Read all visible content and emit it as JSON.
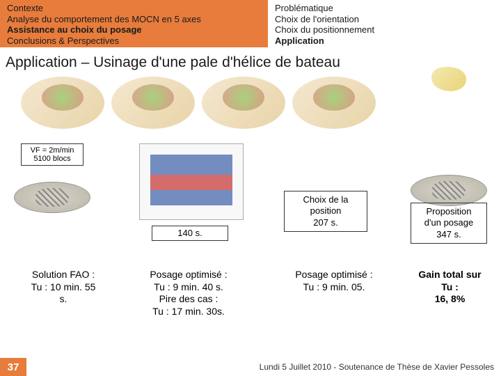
{
  "header": {
    "left": {
      "line1": "Contexte",
      "line2": "Analyse du comportement des MOCN en 5 axes",
      "line3": "Assistance au choix du posage",
      "line4": "Conclusions & Perspectives",
      "bg_color": "#e77c3c"
    },
    "right": {
      "line1": "Problématique",
      "line2": "Choix de l'orientation",
      "line3": "Choix du positionnement",
      "line4": "Application"
    }
  },
  "title": "Application – Usinage d'une pale d'hélice de bateau",
  "left_box": {
    "l1": "VF = 2m/min",
    "l2": "5100 blocs"
  },
  "label_140": "140 s.",
  "label_choix": {
    "l1": "Choix de la",
    "l2": "position",
    "l3": "207 s."
  },
  "label_prop": {
    "l1": "Proposition",
    "l2": "d'un posage",
    "l3": "347 s."
  },
  "bottom": {
    "col1": {
      "l1": "Solution FAO :",
      "l2": "Tu : 10 min. 55",
      "l3": "s."
    },
    "col2": {
      "l1": "Posage optimisé :",
      "l2": "Tu : 9 min. 40 s.",
      "l3": "Pire des cas :",
      "l4": "Tu : 17 min. 30s."
    },
    "col3": {
      "l1": "Posage optimisé :",
      "l2": "Tu : 9 min. 05."
    },
    "col4": {
      "l1": "Gain total sur",
      "l2": "Tu :",
      "l3": "16, 8%"
    }
  },
  "footer": {
    "page": "37",
    "text": "Lundi 5 Juillet 2010 - Soutenance de Thèse de Xavier Pessoles"
  },
  "colors": {
    "accent": "#e77c3c",
    "text": "#1a1a1a",
    "bg": "#ffffff"
  }
}
